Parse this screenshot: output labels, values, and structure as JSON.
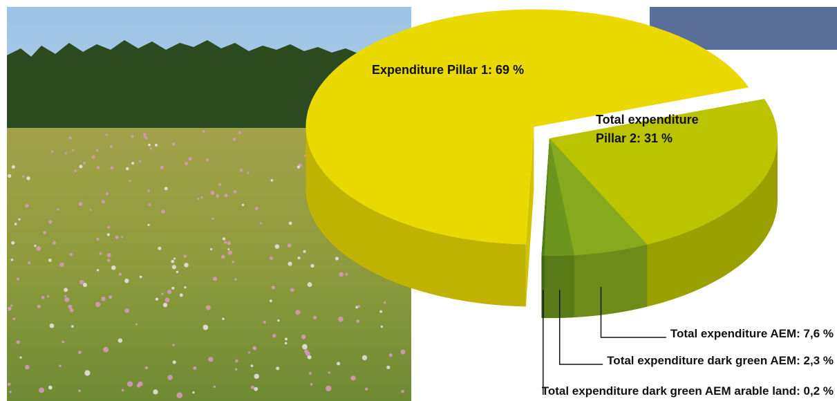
{
  "chart_data": {
    "type": "pie",
    "values": [
      69,
      31,
      7.6,
      2.3,
      0.2
    ],
    "value_labels": [
      "Expenditure Pillar 1: 69 %",
      "Total expenditure Pillar 2: 31 %",
      "Total expenditure AEM:  7,6 %",
      "Total expenditure dark green AEM: 2,3 %",
      "Total expenditure dark green AEM arable land: 0,2 %"
    ],
    "colors": [
      "#e9d900",
      "#bcc300",
      "#86a91e",
      "#6b951c",
      "#4f7d17"
    ]
  }
}
